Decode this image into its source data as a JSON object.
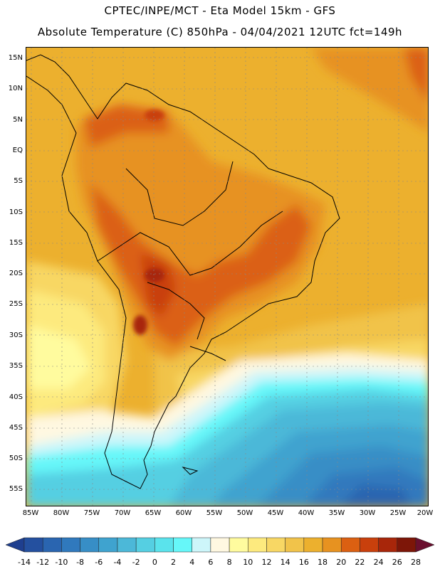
{
  "header": {
    "line1": "CPTEC/INPE/MCT -  Eta Model 15km - GFS",
    "line2": "Absolute Temperature (C) 850hPa - 04/04/2021 12UTC fct=149h"
  },
  "map": {
    "lat_labels": [
      "15N",
      "10N",
      "5N",
      "EQ",
      "5S",
      "10S",
      "15S",
      "20S",
      "25S",
      "30S",
      "35S",
      "40S",
      "45S",
      "50S",
      "55S"
    ],
    "lon_labels": [
      "85W",
      "80W",
      "75W",
      "70W",
      "65W",
      "60W",
      "55W",
      "50W",
      "45W",
      "40W",
      "35W",
      "30W",
      "25W",
      "20W"
    ]
  },
  "legend": {
    "labels": [
      "-14",
      "-12",
      "-10",
      "-8",
      "-6",
      "-4",
      "-2",
      "0",
      "2",
      "4",
      "6",
      "8",
      "10",
      "12",
      "14",
      "16",
      "18",
      "20",
      "22",
      "24",
      "26",
      "28"
    ],
    "colors": [
      "#1f3f8f",
      "#24509f",
      "#2a65b0",
      "#3079bd",
      "#378ec6",
      "#3fa3cf",
      "#4cb8d8",
      "#55cfe2",
      "#5ae3ec",
      "#66f7f9",
      "#cdf6fa",
      "#fff8e1",
      "#fffb9e",
      "#fdea7e",
      "#f8d764",
      "#f1c34a",
      "#ecb02e",
      "#e79220",
      "#db6012",
      "#c9400c",
      "#a8260a",
      "#7d1608",
      "#6a0f2e"
    ]
  }
}
